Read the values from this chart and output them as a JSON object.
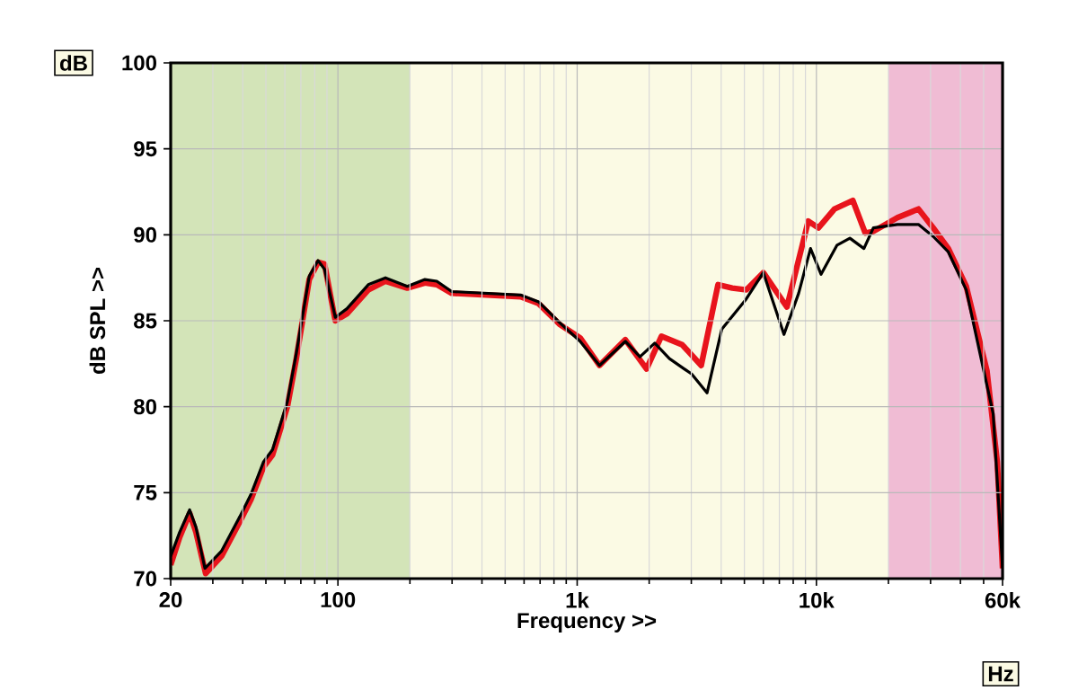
{
  "chart_data": {
    "type": "line",
    "xlabel": "Frequency >>",
    "ylabel": "dB SPL >>",
    "annotations": [
      "dB",
      "Hz"
    ],
    "log": "x",
    "grid": true,
    "line_style": "solid",
    "xlim": [
      20,
      60000
    ],
    "ylim": [
      70,
      100
    ],
    "xticks": [
      20,
      100,
      {
        "value": 1000,
        "label": "1k"
      },
      {
        "value": 10000,
        "label": "10k"
      },
      {
        "value": 60000,
        "label": "60k"
      }
    ],
    "yticks": [
      70,
      75,
      80,
      85,
      90,
      95,
      100
    ],
    "bands": [
      {
        "axis": "x",
        "from": 20,
        "to": 200,
        "color": "#d3e4b8"
      },
      {
        "axis": "x",
        "from": 200,
        "to": 20000,
        "color": "#fbfae4"
      },
      {
        "axis": "x",
        "from": 20000,
        "to": 60000,
        "color": "#f0bcd4"
      }
    ],
    "series": [
      {
        "color": "#e8141c",
        "x": [
          20,
          21.8,
          24.0,
          25.5,
          28,
          32.6,
          38.9,
          43.3,
          48.9,
          53.3,
          61.5,
          67.0,
          75.9,
          82.6,
          87.9,
          97.5,
          109,
          134,
          158,
          195,
          231,
          259,
          299,
          580,
          690,
          843,
          1030,
          1240,
          1590,
          1950,
          2250,
          2750,
          3300,
          3880,
          4450,
          5100,
          6000,
          7530,
          9250,
          10200,
          11900,
          14200,
          16000,
          17300,
          21800,
          26700,
          30800,
          35600,
          42300,
          51600,
          57000,
          60000
        ],
        "values": [
          70.8,
          72.4,
          73.8,
          72.7,
          70.3,
          71.3,
          73.3,
          74.6,
          76.5,
          77.2,
          80.0,
          82.8,
          87.4,
          88.4,
          88.3,
          85.0,
          85.4,
          86.8,
          87.3,
          86.9,
          87.2,
          87.1,
          86.6,
          86.4,
          86.0,
          84.8,
          84.0,
          82.4,
          83.9,
          82.2,
          84.1,
          83.6,
          82.4,
          87.1,
          86.9,
          86.8,
          87.8,
          85.8,
          90.8,
          90.4,
          91.5,
          92.0,
          90.1,
          90.2,
          91.0,
          91.5,
          90.4,
          89.2,
          87.0,
          82.1,
          76.8,
          70.6
        ]
      },
      {
        "color": "#000000",
        "x": [
          20,
          21.8,
          24.0,
          25.5,
          27.8,
          32.6,
          38.9,
          43.3,
          48.9,
          53.3,
          61.5,
          67.0,
          75.9,
          82.6,
          87.9,
          97.5,
          109,
          134,
          158,
          195,
          231,
          259,
          299,
          580,
          690,
          843,
          1030,
          1240,
          1590,
          1830,
          2110,
          2430,
          3010,
          3490,
          4020,
          5050,
          6000,
          7320,
          8430,
          9450,
          10460,
          12200,
          13800,
          15800,
          17300,
          21800,
          26700,
          30800,
          35600,
          42300,
          48800,
          54800,
          60000
        ],
        "values": [
          71.3,
          72.7,
          74.0,
          73.0,
          70.6,
          71.6,
          73.6,
          74.9,
          76.8,
          77.5,
          80.3,
          83.1,
          87.6,
          88.5,
          88.0,
          85.2,
          85.7,
          87.1,
          87.5,
          87.0,
          87.4,
          87.3,
          86.7,
          86.5,
          86.1,
          84.9,
          83.8,
          82.4,
          83.8,
          82.9,
          83.7,
          82.8,
          81.9,
          80.8,
          84.5,
          86.2,
          87.8,
          84.2,
          86.6,
          89.2,
          87.7,
          89.4,
          89.8,
          89.2,
          90.4,
          90.6,
          90.6,
          89.9,
          89.0,
          86.8,
          82.8,
          79.6,
          70.6
        ]
      }
    ]
  }
}
